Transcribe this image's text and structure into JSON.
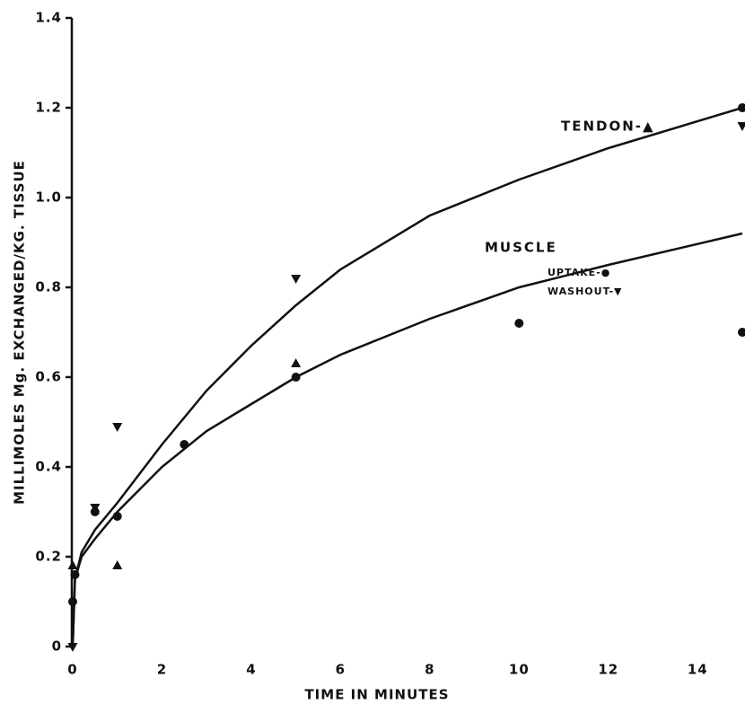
{
  "chart_data": {
    "type": "scatter",
    "x_label": "TIME IN MINUTES",
    "y_label": "MILLIMOLES Mg. EXCHANGED/KG. TISSUE",
    "xlim": [
      0,
      15
    ],
    "ylim": [
      0,
      1.4
    ],
    "xticks": [
      0,
      2,
      4,
      6,
      8,
      10,
      12,
      14
    ],
    "yticks": [
      0,
      0.2,
      0.4,
      0.6,
      0.8,
      {
        "value": 1,
        "label": "1.0"
      },
      1.2,
      1.4
    ],
    "color": "#111111",
    "annotations": [
      "TENDON-▲",
      "MUSCLE",
      "UPTAKE-●",
      "WASHOUT-▼"
    ],
    "series": [
      {
        "style": "line",
        "x": [
          0,
          0.05,
          0.2,
          0.5,
          1,
          2,
          3,
          4,
          5,
          6,
          8,
          10,
          12,
          15
        ],
        "values": [
          0,
          0.15,
          0.21,
          0.26,
          0.32,
          0.45,
          0.57,
          0.67,
          0.76,
          0.84,
          0.96,
          1.04,
          1.11,
          1.2
        ]
      },
      {
        "style": "line",
        "x": [
          0,
          0.05,
          0.2,
          0.5,
          1,
          2,
          3,
          4,
          5,
          6,
          8,
          10,
          12,
          15
        ],
        "values": [
          0,
          0.15,
          0.2,
          0.24,
          0.3,
          0.4,
          0.48,
          0.54,
          0.6,
          0.65,
          0.73,
          0.8,
          0.85,
          0.92
        ]
      },
      {
        "style": "points",
        "marker": "triangle-up",
        "x": [
          0,
          1,
          5
        ],
        "values": [
          0.18,
          0.18,
          0.63
        ]
      },
      {
        "style": "points",
        "marker": "circle",
        "x": [
          0,
          0.05,
          0.5,
          1,
          2.5,
          5,
          10,
          15,
          15
        ],
        "values": [
          0.1,
          0.16,
          0.3,
          0.29,
          0.45,
          0.6,
          0.72,
          0.7,
          1.2
        ]
      },
      {
        "style": "points",
        "marker": "triangle-down",
        "x": [
          0,
          0.5,
          1,
          5,
          15
        ],
        "values": [
          0,
          0.31,
          0.49,
          0.82,
          1.16
        ]
      }
    ]
  }
}
